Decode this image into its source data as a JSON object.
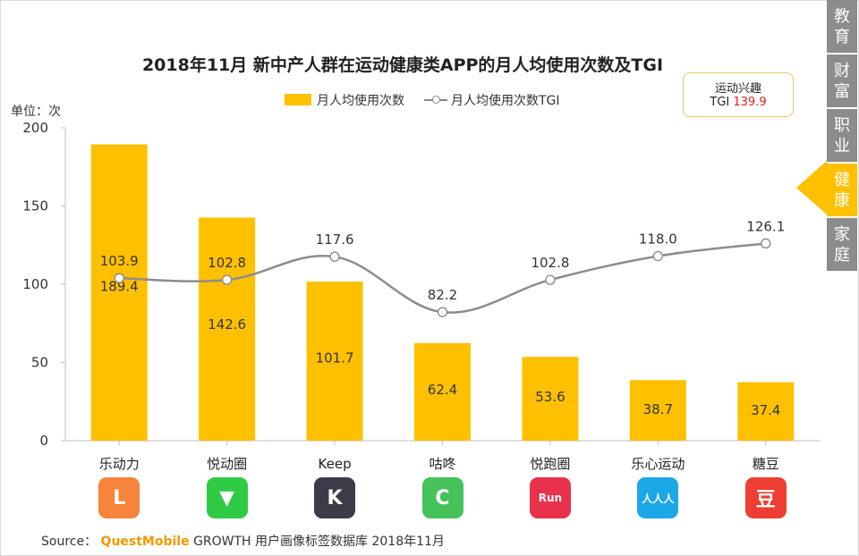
{
  "title": "2018年11月 新中产人群在运动健康类APP的月人均使用次数及TGI",
  "unit_label": "单位：次",
  "legend": {
    "bar_label": "月人均使用次数",
    "line_label": "月人均使用次数TGI"
  },
  "tgi_box": {
    "line1": "运动兴趣",
    "prefix": "TGI",
    "value": "139.9"
  },
  "side_tabs": [
    {
      "label": "教育",
      "active": false
    },
    {
      "label": "财富",
      "active": false
    },
    {
      "label": "职业",
      "active": false
    },
    {
      "label": "健康",
      "active": true
    },
    {
      "label": "家庭",
      "active": false
    }
  ],
  "source": {
    "prefix": "Source：",
    "brand": "QuestMobile",
    "text": "GROWTH 用户画像标签数据库 2018年11月"
  },
  "colors": {
    "bar": "#FFC000",
    "line": "#8C8C8C",
    "accent_red": "#E02020",
    "tab_gray": "#8C8C8C",
    "tab_active": "#FFC000"
  },
  "apps": [
    {
      "name": "乐动力",
      "icon_glyph": "L",
      "icon_color": "#F7843A"
    },
    {
      "name": "悦动圈",
      "icon_glyph": "▼",
      "icon_color": "#2FCB45"
    },
    {
      "name": "Keep",
      "icon_glyph": "K",
      "icon_color": "#3E3A47"
    },
    {
      "name": "咕咚",
      "icon_glyph": "C",
      "icon_color": "#45C25A"
    },
    {
      "name": "悦跑圈",
      "icon_glyph": "Run",
      "icon_color": "#E8314B"
    },
    {
      "name": "乐心运动",
      "icon_glyph": "人人人",
      "icon_color": "#1CA8E6"
    },
    {
      "name": "糖豆",
      "icon_glyph": "豆",
      "icon_color": "#EE3D32"
    }
  ],
  "chart_data": {
    "type": "bar",
    "categories": [
      "乐动力",
      "悦动圈",
      "Keep",
      "咕咚",
      "悦跑圈",
      "乐心运动",
      "糖豆"
    ],
    "series": [
      {
        "name": "月人均使用次数",
        "type": "bar",
        "values": [
          189.4,
          142.6,
          101.7,
          62.4,
          53.6,
          38.7,
          37.4
        ]
      },
      {
        "name": "月人均使用次数TGI",
        "type": "line",
        "values": [
          103.9,
          102.8,
          117.6,
          82.2,
          102.8,
          118.0,
          126.1
        ]
      }
    ],
    "value_labels": {
      "bars": [
        "189.4",
        "142.6",
        "101.7",
        "62.4",
        "53.6",
        "38.7",
        "37.4"
      ],
      "line": [
        "103.9",
        "102.8",
        "117.6",
        "82.2",
        "102.8",
        "118.0",
        "126.1"
      ]
    },
    "y_ticks": [
      "0",
      "50",
      "100",
      "150",
      "200"
    ],
    "ylim": [
      0,
      200
    ],
    "ylabel": "单位：次",
    "grid": false
  }
}
